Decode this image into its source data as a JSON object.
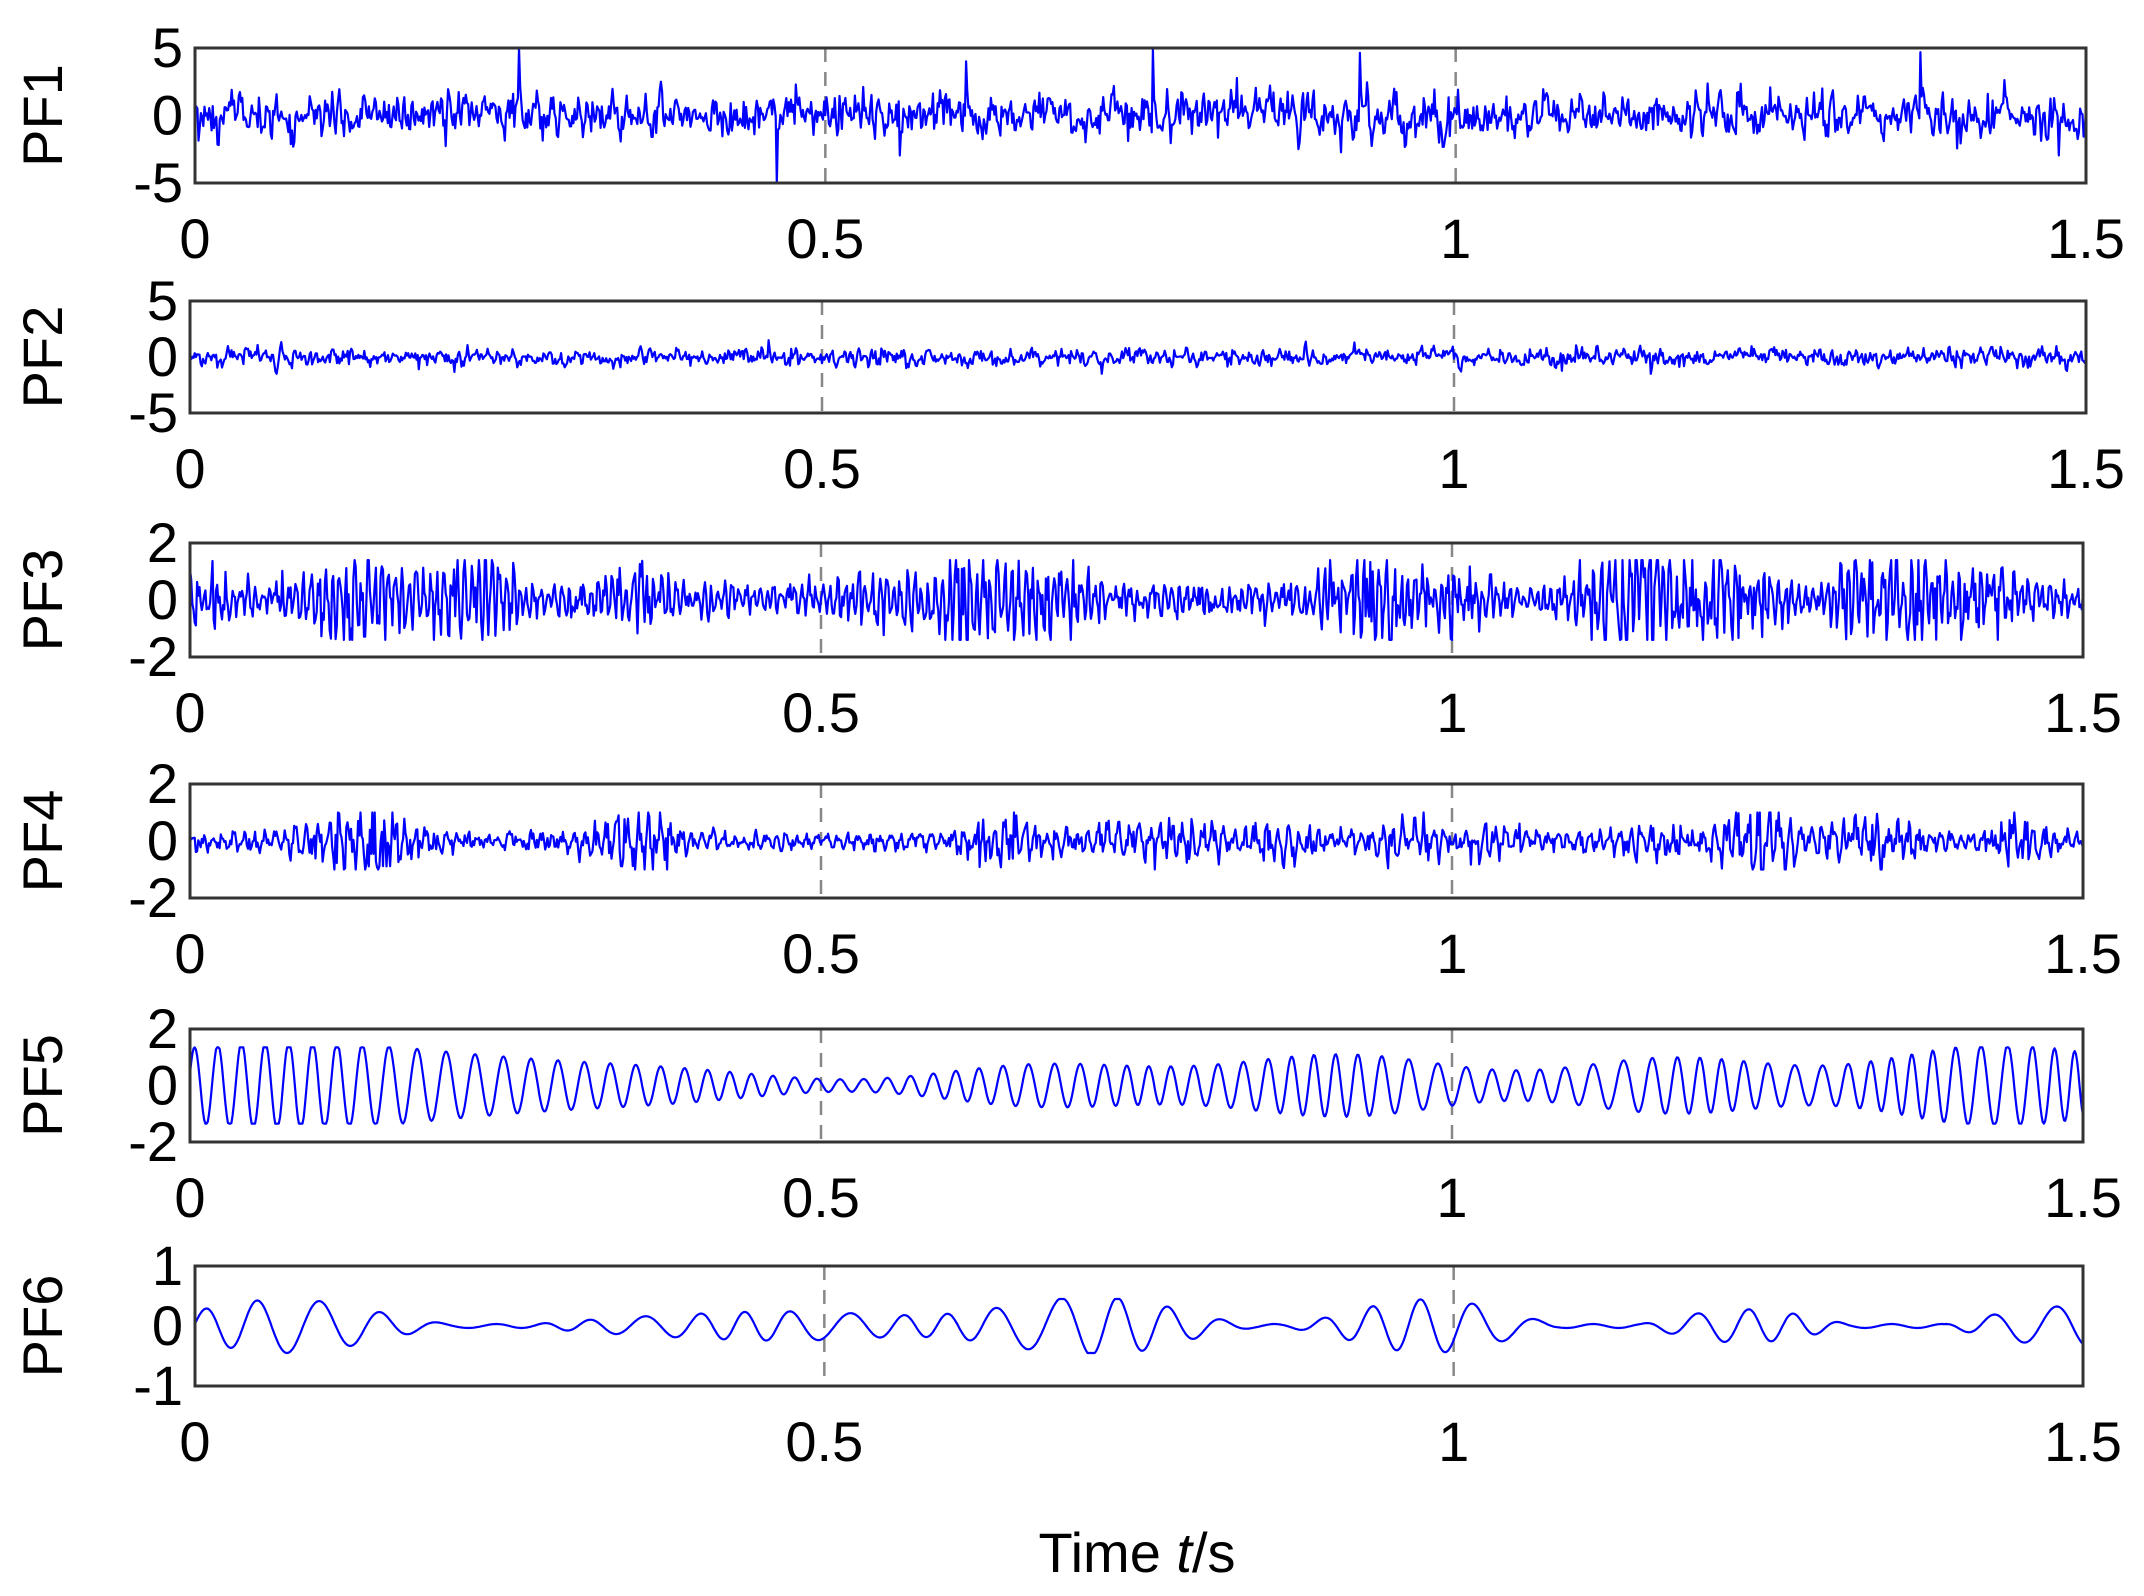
{
  "chart_data": [
    {
      "type": "line",
      "ylabel": "PF1",
      "yticks": [
        5,
        0,
        -5
      ],
      "ylim": [
        -5,
        5
      ],
      "xlim": [
        0,
        1.5
      ],
      "xticks": [
        "0",
        "0.5",
        "1",
        "1.5"
      ],
      "grid": "x only, dashed at 0.5 and 1",
      "color": "#0000ff",
      "signal": {
        "kind": "broadband noise",
        "amplitude": 1.2,
        "peak": 5
      },
      "series": [
        {
          "x_range": [
            0,
            1.5
          ]
        }
      ]
    },
    {
      "type": "line",
      "ylabel": "PF2",
      "yticks": [
        5,
        0,
        -5
      ],
      "ylim": [
        -5,
        5
      ],
      "xlim": [
        0,
        1.5
      ],
      "xticks": [
        "0",
        "0.5",
        "1",
        "1.5"
      ],
      "grid": "x only, dashed at 0.5 and 1",
      "color": "#0000ff",
      "signal": {
        "kind": "high-frequency noise",
        "amplitude": 0.55,
        "peak": 1.5
      },
      "series": [
        {
          "x_range": [
            0,
            1.5
          ]
        }
      ]
    },
    {
      "type": "line",
      "ylabel": "PF3",
      "yticks": [
        2,
        0,
        -2
      ],
      "ylim": [
        -2,
        2
      ],
      "xlim": [
        0,
        1.5
      ],
      "xticks": [
        "0",
        "0.5",
        "1",
        "1.5"
      ],
      "grid": "x only, dashed at 0.5 and 1",
      "color": "#0000ff",
      "signal": {
        "kind": "bursty high-frequency oscillation",
        "amplitude": 0.45,
        "peak": 1.4
      },
      "series": [
        {
          "x_range": [
            0,
            1.5
          ]
        }
      ]
    },
    {
      "type": "line",
      "ylabel": "PF4",
      "yticks": [
        2,
        0,
        -2
      ],
      "ylim": [
        -2,
        2
      ],
      "xlim": [
        0,
        1.5
      ],
      "xticks": [
        "0",
        "0.5",
        "1",
        "1.5"
      ],
      "grid": "x only, dashed at 0.5 and 1",
      "color": "#0000ff",
      "signal": {
        "kind": "intermittent oscillation bursts",
        "amplitude": 0.25,
        "peak": 1.0
      },
      "series": [
        {
          "x_range": [
            0,
            1.5
          ]
        }
      ]
    },
    {
      "type": "line",
      "ylabel": "PF5",
      "yticks": [
        2,
        0,
        -2
      ],
      "ylim": [
        -2,
        2
      ],
      "xlim": [
        0,
        1.5
      ],
      "xticks": [
        "0",
        "0.5",
        "1",
        "1.5"
      ],
      "grid": "x only, dashed at 0.5 and 1",
      "color": "#0000ff",
      "signal": {
        "kind": "modulated sinusoid",
        "frequency_hz": 52,
        "amplitude": 0.85,
        "peak": 1.35
      },
      "series": [
        {
          "x_range": [
            0,
            1.5
          ]
        }
      ]
    },
    {
      "type": "line",
      "ylabel": "PF6",
      "yticks": [
        1,
        0,
        -1
      ],
      "ylim": [
        -1,
        1
      ],
      "xlim": [
        0,
        1.5
      ],
      "xticks": [
        "0",
        "0.5",
        "1",
        "1.5"
      ],
      "grid": "x only, dashed at 0.5 and 1",
      "color": "#0000ff",
      "signal": {
        "kind": "low-frequency modulated oscillation",
        "frequency_hz": 24,
        "amplitude": 0.22,
        "peak": 0.45
      },
      "series": [
        {
          "x_range": [
            0,
            1.5
          ]
        }
      ]
    }
  ],
  "figure": {
    "xlabel_prefix": "Time ",
    "xlabel_var": "t",
    "xlabel_suffix": "/s"
  }
}
